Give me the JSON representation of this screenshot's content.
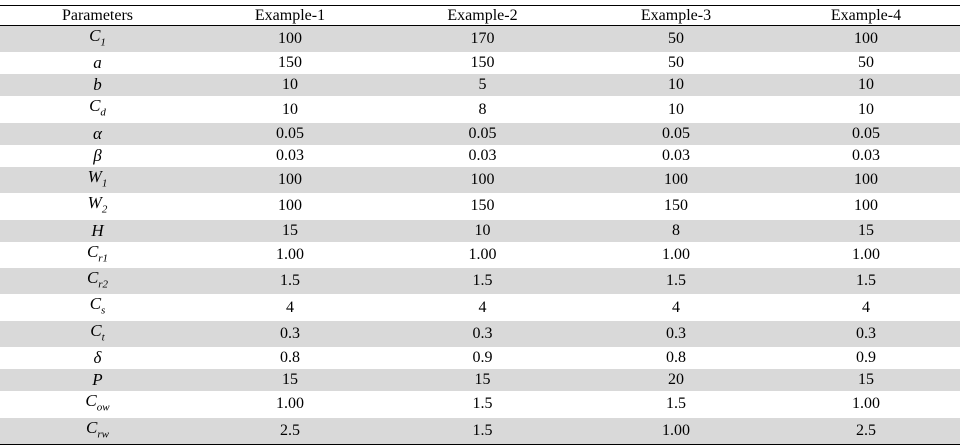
{
  "table": {
    "header": [
      "Parameters",
      "Example-1",
      "Example-2",
      "Example-3",
      "Example-4"
    ],
    "rows": [
      [
        {
          "symbol": "C",
          "sub": "1"
        },
        "100",
        "170",
        "50",
        "100"
      ],
      [
        {
          "symbol": "a"
        },
        "150",
        "150",
        "50",
        "50"
      ],
      [
        {
          "symbol": "b"
        },
        "10",
        "5",
        "10",
        "10"
      ],
      [
        {
          "symbol": "C",
          "sub": "d"
        },
        "10",
        "8",
        "10",
        "10"
      ],
      [
        {
          "symbol": "α"
        },
        "0.05",
        "0.05",
        "0.05",
        "0.05"
      ],
      [
        {
          "symbol": "β"
        },
        "0.03",
        "0.03",
        "0.03",
        "0.03"
      ],
      [
        {
          "symbol": "W",
          "sub": "1"
        },
        "100",
        "100",
        "100",
        "100"
      ],
      [
        {
          "symbol": "W",
          "sub": "2"
        },
        "100",
        "150",
        "150",
        "100"
      ],
      [
        {
          "symbol": "H"
        },
        "15",
        "10",
        "8",
        "15"
      ],
      [
        {
          "symbol": "C",
          "sub": "r1"
        },
        "1.00",
        "1.00",
        "1.00",
        "1.00"
      ],
      [
        {
          "symbol": "C",
          "sub": "r2"
        },
        "1.5",
        "1.5",
        "1.5",
        "1.5"
      ],
      [
        {
          "symbol": "C",
          "sub": "s"
        },
        "4",
        "4",
        "4",
        "4"
      ],
      [
        {
          "symbol": "C",
          "sub": "t"
        },
        "0.3",
        "0.3",
        "0.3",
        "0.3"
      ],
      [
        {
          "symbol": "δ"
        },
        "0.8",
        "0.9",
        "0.8",
        "0.9"
      ],
      [
        {
          "symbol": "P"
        },
        "15",
        "15",
        "20",
        "15"
      ],
      [
        {
          "symbol": "C",
          "sub": "ow"
        },
        "1.00",
        "1.5",
        "1.5",
        "1.00"
      ],
      [
        {
          "symbol": "C",
          "sub": "rw"
        },
        "2.5",
        "1.5",
        "1.00",
        "2.5"
      ]
    ]
  }
}
